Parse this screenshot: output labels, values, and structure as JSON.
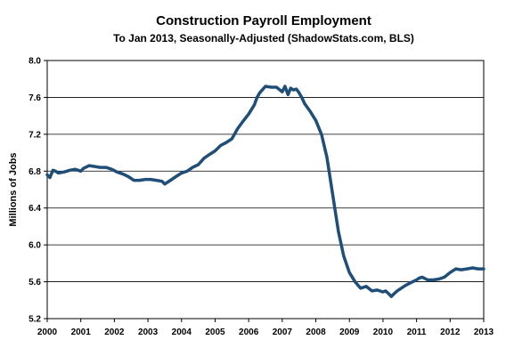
{
  "chart_data": {
    "type": "line",
    "title": "Construction Payroll Employment",
    "subtitle": "To Jan 2013, Seasonally-Adjusted (ShadowStats.com, BLS)",
    "xlabel": "",
    "ylabel": "Millions of Jobs",
    "xlim": [
      2000,
      2013
    ],
    "ylim": [
      5.2,
      8.0
    ],
    "x_ticks": [
      "2000",
      "2001",
      "2002",
      "2003",
      "2004",
      "2005",
      "2006",
      "2007",
      "2008",
      "2009",
      "2010",
      "2011",
      "2012",
      "2013"
    ],
    "y_ticks": [
      "8.0",
      "7.6",
      "7.2",
      "6.8",
      "6.4",
      "6.0",
      "5.6",
      "5.2"
    ],
    "grid": "horizontal",
    "legend": "none",
    "series": [
      {
        "color": "#1f4e79",
        "x": [
          2000.0,
          2000.08,
          2000.17,
          2000.25,
          2000.33,
          2000.5,
          2000.67,
          2000.83,
          2001.0,
          2001.08,
          2001.25,
          2001.42,
          2001.58,
          2001.75,
          2001.92,
          2002.08,
          2002.25,
          2002.42,
          2002.58,
          2002.75,
          2002.92,
          2003.08,
          2003.25,
          2003.42,
          2003.5,
          2003.67,
          2003.83,
          2004.0,
          2004.17,
          2004.33,
          2004.5,
          2004.67,
          2004.83,
          2005.0,
          2005.17,
          2005.33,
          2005.5,
          2005.67,
          2005.83,
          2006.0,
          2006.17,
          2006.25,
          2006.33,
          2006.5,
          2006.67,
          2006.83,
          2007.0,
          2007.08,
          2007.17,
          2007.25,
          2007.33,
          2007.42,
          2007.5,
          2007.58,
          2007.67,
          2007.83,
          2008.0,
          2008.17,
          2008.33,
          2008.5,
          2008.67,
          2008.83,
          2009.0,
          2009.17,
          2009.33,
          2009.5,
          2009.67,
          2009.83,
          2010.0,
          2010.08,
          2010.17,
          2010.25,
          2010.33,
          2010.42,
          2010.5,
          2010.67,
          2010.83,
          2011.0,
          2011.08,
          2011.17,
          2011.33,
          2011.5,
          2011.67,
          2011.83,
          2012.0,
          2012.17,
          2012.33,
          2012.5,
          2012.67,
          2012.83,
          2013.0
        ],
        "values": [
          6.76,
          6.73,
          6.81,
          6.8,
          6.78,
          6.79,
          6.81,
          6.82,
          6.8,
          6.83,
          6.86,
          6.85,
          6.84,
          6.84,
          6.82,
          6.79,
          6.77,
          6.74,
          6.7,
          6.7,
          6.71,
          6.71,
          6.7,
          6.69,
          6.66,
          6.7,
          6.74,
          6.78,
          6.8,
          6.84,
          6.87,
          6.94,
          6.98,
          7.02,
          7.08,
          7.11,
          7.15,
          7.26,
          7.34,
          7.42,
          7.52,
          7.6,
          7.65,
          7.72,
          7.71,
          7.71,
          7.66,
          7.72,
          7.63,
          7.7,
          7.68,
          7.69,
          7.65,
          7.6,
          7.53,
          7.45,
          7.35,
          7.2,
          6.95,
          6.55,
          6.15,
          5.88,
          5.7,
          5.6,
          5.53,
          5.55,
          5.5,
          5.51,
          5.49,
          5.5,
          5.47,
          5.44,
          5.47,
          5.5,
          5.52,
          5.56,
          5.59,
          5.62,
          5.64,
          5.65,
          5.62,
          5.62,
          5.63,
          5.65,
          5.7,
          5.74,
          5.73,
          5.74,
          5.75,
          5.74,
          5.74
        ]
      }
    ]
  }
}
